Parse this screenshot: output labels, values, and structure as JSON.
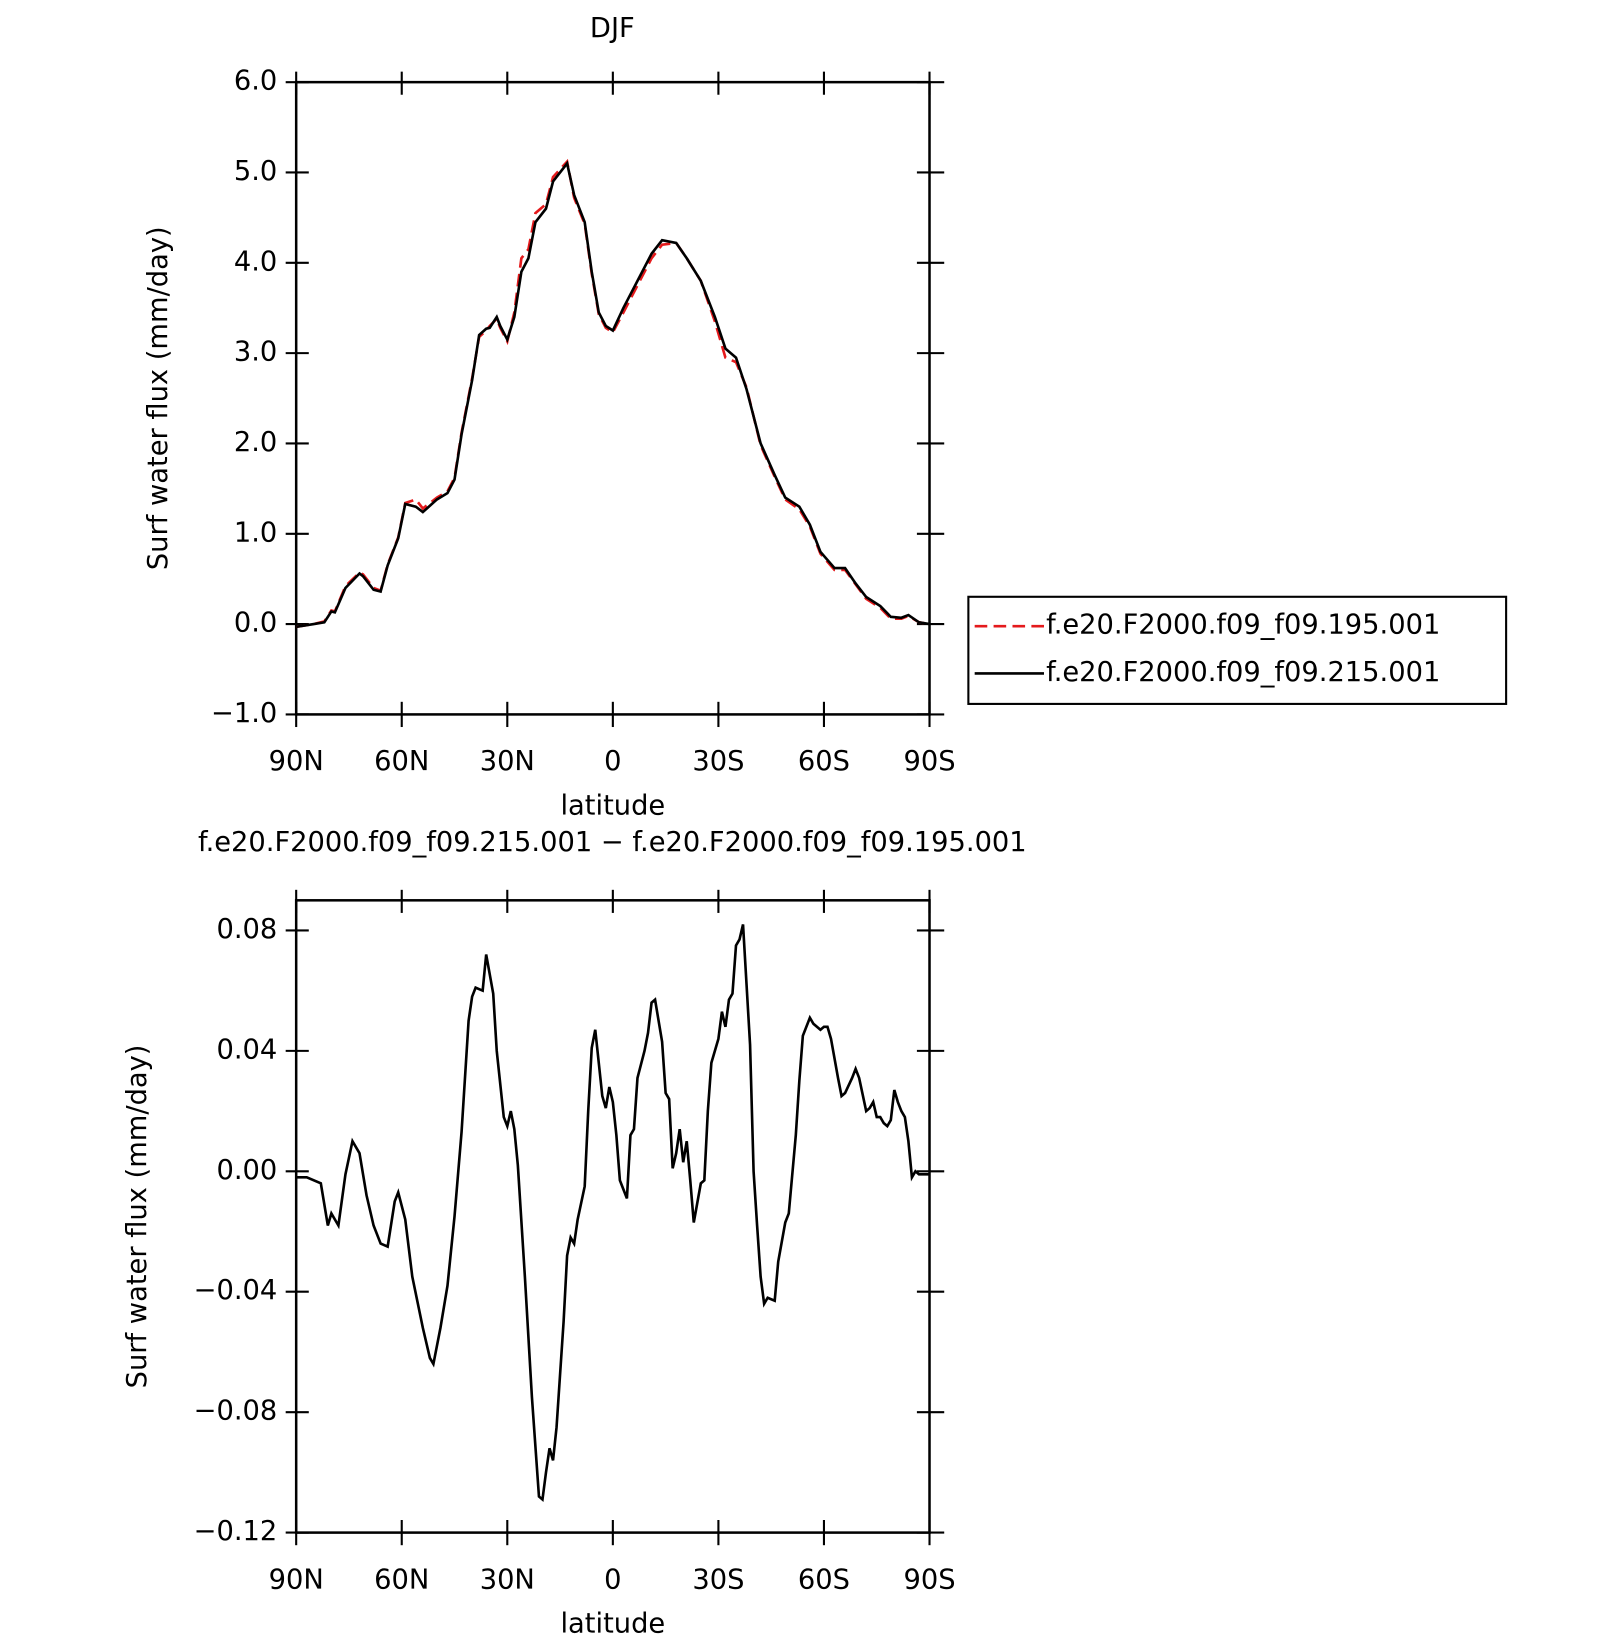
{
  "chart_data": [
    {
      "type": "line",
      "title": "DJF",
      "x_label": "latitude",
      "y_label": "Surf water flux (mm/day)",
      "xlim": [
        90,
        -90
      ],
      "ylim": [
        -1,
        6
      ],
      "xticks": [
        {
          "value": 90,
          "label": "90N"
        },
        {
          "value": 60,
          "label": "60N"
        },
        {
          "value": 30,
          "label": "30N"
        },
        0,
        {
          "value": -30,
          "label": "30S"
        },
        {
          "value": -60,
          "label": "60S"
        },
        {
          "value": -90,
          "label": "90S"
        }
      ],
      "yticks": [
        {
          "value": -1,
          "label": "−1.0"
        },
        {
          "value": 0,
          "label": "0.0"
        },
        {
          "value": 1,
          "label": "1.0"
        },
        {
          "value": 2,
          "label": "2.0"
        },
        {
          "value": 3,
          "label": "3.0"
        },
        {
          "value": 4,
          "label": "4.0"
        },
        {
          "value": 5,
          "label": "5.0"
        },
        {
          "value": 6,
          "label": "6.0"
        }
      ],
      "legend": "outside-right",
      "x": [
        90,
        85,
        82,
        80,
        79,
        76,
        72,
        71,
        68,
        66,
        64,
        61,
        59,
        56,
        54,
        50,
        47,
        45,
        43,
        40,
        38,
        36,
        35,
        33,
        32,
        30,
        28,
        26,
        24,
        22,
        19,
        17,
        13,
        11,
        8,
        6,
        4,
        2,
        0,
        -3,
        -7,
        -11,
        -14,
        -18,
        -21,
        -25,
        -29,
        -32,
        -35,
        -38,
        -42,
        -46,
        -49,
        -53,
        -56,
        -59,
        -63,
        -66,
        -69,
        -72,
        -76,
        -79,
        -82,
        -84,
        -87,
        -90
      ],
      "series": [
        {
          "name": "f.e20.F2000.f09_f09.195.001",
          "color": "#e41a1c",
          "linestyle": "dashed",
          "values": [
            -0.03,
            0.0,
            0.03,
            0.15,
            0.14,
            0.42,
            0.57,
            0.55,
            0.4,
            0.37,
            0.66,
            0.96,
            1.34,
            1.38,
            1.28,
            1.4,
            1.47,
            1.62,
            2.12,
            2.72,
            3.18,
            3.25,
            3.3,
            3.38,
            3.28,
            3.13,
            3.45,
            4.05,
            4.15,
            4.55,
            4.65,
            4.95,
            5.12,
            4.72,
            4.43,
            3.88,
            3.43,
            3.28,
            3.23,
            3.45,
            3.75,
            4.05,
            4.2,
            4.22,
            4.05,
            3.8,
            3.35,
            2.95,
            2.9,
            2.62,
            1.98,
            1.63,
            1.38,
            1.27,
            1.08,
            0.78,
            0.6,
            0.6,
            0.44,
            0.28,
            0.18,
            0.06,
            0.06,
            0.09,
            0.02,
            0.0
          ]
        },
        {
          "name": "f.e20.F2000.f09_f09.215.001",
          "color": "#000000",
          "linestyle": "solid",
          "values": [
            -0.03,
            0.0,
            0.02,
            0.14,
            0.13,
            0.4,
            0.56,
            0.53,
            0.38,
            0.36,
            0.65,
            0.95,
            1.33,
            1.3,
            1.24,
            1.38,
            1.45,
            1.6,
            2.1,
            2.7,
            3.2,
            3.27,
            3.28,
            3.4,
            3.3,
            3.15,
            3.4,
            3.9,
            4.05,
            4.45,
            4.6,
            4.9,
            5.1,
            4.75,
            4.45,
            3.9,
            3.45,
            3.3,
            3.25,
            3.5,
            3.8,
            4.1,
            4.25,
            4.22,
            4.05,
            3.8,
            3.4,
            3.05,
            2.95,
            2.6,
            2.0,
            1.65,
            1.4,
            1.3,
            1.1,
            0.8,
            0.62,
            0.62,
            0.45,
            0.3,
            0.2,
            0.08,
            0.07,
            0.1,
            0.02,
            0.0
          ]
        }
      ]
    },
    {
      "type": "line",
      "title": "f.e20.F2000.f09_f09.215.001 − f.e20.F2000.f09_f09.195.001",
      "x_label": "latitude",
      "y_label": "Surf water flux (mm/day)",
      "xlim": [
        90,
        -90
      ],
      "ylim": [
        -0.12,
        0.09
      ],
      "xticks": [
        {
          "value": 90,
          "label": "90N"
        },
        {
          "value": 60,
          "label": "60N"
        },
        {
          "value": 30,
          "label": "30N"
        },
        0,
        {
          "value": -30,
          "label": "30S"
        },
        {
          "value": -60,
          "label": "60S"
        },
        {
          "value": -90,
          "label": "90S"
        }
      ],
      "yticks": [
        {
          "value": -0.12,
          "label": "−0.12"
        },
        {
          "value": -0.08,
          "label": "−0.08"
        },
        {
          "value": -0.04,
          "label": "−0.04"
        },
        {
          "value": 0,
          "label": "0.00"
        },
        0.04,
        0.08
      ],
      "color": "#000000",
      "linestyle": "solid",
      "x": [
        90,
        87,
        83,
        81,
        80,
        78,
        76,
        74,
        72,
        70,
        68,
        66,
        64,
        62,
        61,
        59,
        57,
        54,
        52,
        51,
        49,
        47,
        45,
        43,
        41,
        40,
        39,
        37,
        36,
        34,
        33,
        31,
        30,
        29,
        28,
        27,
        25,
        23,
        21,
        20,
        19,
        18,
        17,
        16,
        14,
        13,
        12,
        11,
        10,
        8,
        7,
        6,
        5,
        4,
        3,
        2,
        1,
        0,
        -1,
        -2,
        -3,
        -4,
        -5,
        -6,
        -7,
        -9,
        -10,
        -11,
        -12,
        -14,
        -15,
        -16,
        -17,
        -18,
        -19,
        -20,
        -21,
        -22,
        -23,
        -25,
        -26,
        -27,
        -28,
        -29,
        -30,
        -31,
        -32,
        -33,
        -34,
        -35,
        -36,
        -37,
        -38,
        -39,
        -40,
        -41,
        -42,
        -43,
        -44,
        -46,
        -47,
        -49,
        -50,
        -52,
        -53,
        -54,
        -56,
        -57,
        -59,
        -60,
        -61,
        -62,
        -64,
        -65,
        -66,
        -68,
        -69,
        -70,
        -72,
        -73,
        -74,
        -75,
        -76,
        -77,
        -78,
        -79,
        -80,
        -81,
        -82,
        -83,
        -84,
        -85,
        -86,
        -87,
        -88,
        -90
      ],
      "values": [
        -0.002,
        -0.002,
        -0.004,
        -0.018,
        -0.014,
        -0.018,
        -0.001,
        0.01,
        0.006,
        -0.008,
        -0.018,
        -0.024,
        -0.025,
        -0.01,
        -0.007,
        -0.016,
        -0.035,
        -0.052,
        -0.062,
        -0.064,
        -0.052,
        -0.038,
        -0.015,
        0.013,
        0.05,
        0.058,
        0.061,
        0.06,
        0.072,
        0.059,
        0.04,
        0.018,
        0.015,
        0.02,
        0.014,
        0.002,
        -0.035,
        -0.075,
        -0.108,
        -0.109,
        -0.1,
        -0.092,
        -0.096,
        -0.085,
        -0.05,
        -0.028,
        -0.022,
        -0.024,
        -0.016,
        -0.005,
        0.02,
        0.041,
        0.047,
        0.036,
        0.025,
        0.021,
        0.028,
        0.023,
        0.012,
        -0.003,
        -0.006,
        -0.009,
        0.012,
        0.014,
        0.031,
        0.04,
        0.046,
        0.056,
        0.057,
        0.043,
        0.026,
        0.024,
        0.001,
        0.006,
        0.014,
        0.003,
        0.01,
        -0.003,
        -0.017,
        -0.004,
        -0.003,
        0.02,
        0.036,
        0.04,
        0.044,
        0.053,
        0.048,
        0.057,
        0.059,
        0.075,
        0.077,
        0.082,
        0.062,
        0.042,
        0,
        -0.018,
        -0.035,
        -0.044,
        -0.042,
        -0.043,
        -0.03,
        -0.017,
        -0.014,
        0.012,
        0.03,
        0.045,
        0.051,
        0.049,
        0.047,
        0.048,
        0.048,
        0.044,
        0.031,
        0.025,
        0.026,
        0.031,
        0.034,
        0.031,
        0.02,
        0.021,
        0.023,
        0.018,
        0.018,
        0.016,
        0.015,
        0.017,
        0.027,
        0.023,
        0.02,
        0.018,
        0.01,
        -0.002,
        0,
        -0.001,
        -0.001,
        -0.001
      ]
    }
  ]
}
